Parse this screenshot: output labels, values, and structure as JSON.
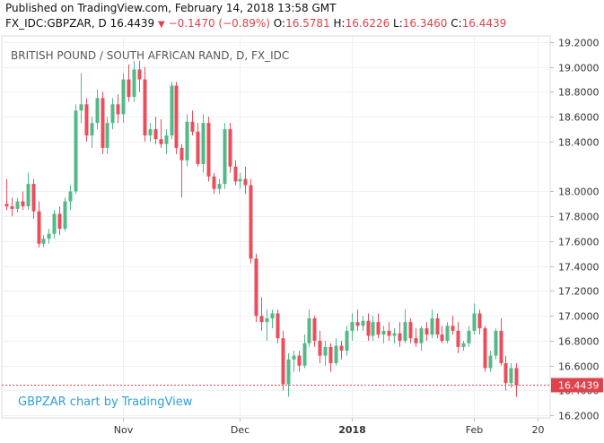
{
  "header": {
    "published_line": "Published on TradingView.com, February 14, 2018 13:58 GMT",
    "symbol": "FX_IDC:GBPZAR, D",
    "last": "16.4439",
    "arrow": "▼",
    "change": "−0.1470 (−0.89%)",
    "o_label": "O:",
    "o_value": "16.5781",
    "h_label": "H:",
    "h_value": "16.6226",
    "l_label": "L:",
    "l_value": "16.3460",
    "c_label": "C:",
    "c_value": "16.4439"
  },
  "colors": {
    "up": "#53b987",
    "down": "#eb4d5c",
    "price_line": "#e0424b",
    "watermark": "#2ea1d8"
  },
  "chart_data": {
    "type": "candlestick",
    "title": "BRITISH POUND / SOUTH AFRICAN RAND, D, FX_IDC",
    "watermark": "GBPZAR chart by TradingView",
    "current_price_label": "16.4439",
    "current_price": 16.4439,
    "ylim": [
      16.18,
      19.25
    ],
    "y_ticks": [
      "16.2000",
      "16.4000",
      "16.6000",
      "16.8000",
      "17.0000",
      "17.2000",
      "17.4000",
      "17.6000",
      "17.8000",
      "18.0000",
      "18.4000",
      "18.6000",
      "18.8000",
      "19.0000",
      "19.2000"
    ],
    "y_tick_values": [
      16.2,
      16.4,
      16.6,
      16.8,
      17.0,
      17.2,
      17.4,
      17.6,
      17.8,
      18.0,
      18.4,
      18.6,
      18.8,
      19.0,
      19.2
    ],
    "x_ticks": [
      {
        "label": "Nov",
        "index": 22
      },
      {
        "label": "Dec",
        "index": 44
      },
      {
        "label": "2018",
        "index": 65
      },
      {
        "label": "Feb",
        "index": 88
      },
      {
        "label": "20",
        "index": 100
      }
    ],
    "candles": [
      [
        17.9,
        18.1,
        17.85,
        17.88
      ],
      [
        17.88,
        17.95,
        17.8,
        17.86
      ],
      [
        17.86,
        17.95,
        17.83,
        17.92
      ],
      [
        17.92,
        18.0,
        17.85,
        17.88
      ],
      [
        17.88,
        18.15,
        17.85,
        18.06
      ],
      [
        18.06,
        18.1,
        17.78,
        17.84
      ],
      [
        17.84,
        17.92,
        17.55,
        17.58
      ],
      [
        17.58,
        17.65,
        17.55,
        17.62
      ],
      [
        17.62,
        17.7,
        17.58,
        17.66
      ],
      [
        17.66,
        17.85,
        17.62,
        17.82
      ],
      [
        17.82,
        17.88,
        17.65,
        17.7
      ],
      [
        17.7,
        17.95,
        17.68,
        17.92
      ],
      [
        17.92,
        18.05,
        17.85,
        18.0
      ],
      [
        18.0,
        18.7,
        17.98,
        18.65
      ],
      [
        18.65,
        18.95,
        18.55,
        18.7
      ],
      [
        18.7,
        18.75,
        18.4,
        18.45
      ],
      [
        18.45,
        18.6,
        18.35,
        18.55
      ],
      [
        18.55,
        18.82,
        18.5,
        18.75
      ],
      [
        18.75,
        18.8,
        18.3,
        18.35
      ],
      [
        18.35,
        18.6,
        18.3,
        18.55
      ],
      [
        18.55,
        18.75,
        18.5,
        18.7
      ],
      [
        18.7,
        18.78,
        18.55,
        18.62
      ],
      [
        18.62,
        18.95,
        18.55,
        18.9
      ],
      [
        18.9,
        19.02,
        18.72,
        18.76
      ],
      [
        18.76,
        19.05,
        18.72,
        18.98
      ],
      [
        18.98,
        19.05,
        18.8,
        18.9
      ],
      [
        18.9,
        19.0,
        18.4,
        18.45
      ],
      [
        18.45,
        18.55,
        18.4,
        18.5
      ],
      [
        18.5,
        18.6,
        18.38,
        18.42
      ],
      [
        18.42,
        18.58,
        18.35,
        18.38
      ],
      [
        18.38,
        18.5,
        18.3,
        18.45
      ],
      [
        18.45,
        18.88,
        18.42,
        18.85
      ],
      [
        18.85,
        18.88,
        18.3,
        18.35
      ],
      [
        18.35,
        18.38,
        17.95,
        18.25
      ],
      [
        18.25,
        18.62,
        18.2,
        18.56
      ],
      [
        18.56,
        18.65,
        18.45,
        18.48
      ],
      [
        18.48,
        18.55,
        18.2,
        18.22
      ],
      [
        18.22,
        18.62,
        18.15,
        18.55
      ],
      [
        18.55,
        18.6,
        18.08,
        18.12
      ],
      [
        18.12,
        18.15,
        17.98,
        18.02
      ],
      [
        18.02,
        18.1,
        17.98,
        18.06
      ],
      [
        18.06,
        18.55,
        18.02,
        18.5
      ],
      [
        18.5,
        18.55,
        18.15,
        18.2
      ],
      [
        18.2,
        18.25,
        18.05,
        18.08
      ],
      [
        18.08,
        18.15,
        18.02,
        18.1
      ],
      [
        18.1,
        18.2,
        17.98,
        18.05
      ],
      [
        18.05,
        18.1,
        17.42,
        17.46
      ],
      [
        17.46,
        17.5,
        16.95,
        17.0
      ],
      [
        17.0,
        17.15,
        16.88,
        16.95
      ],
      [
        16.95,
        17.05,
        16.8,
        16.98
      ],
      [
        16.98,
        17.05,
        16.9,
        17.02
      ],
      [
        17.02,
        17.05,
        16.78,
        16.82
      ],
      [
        16.82,
        16.88,
        16.4,
        16.45
      ],
      [
        16.45,
        16.7,
        16.35,
        16.65
      ],
      [
        16.65,
        16.72,
        16.55,
        16.68
      ],
      [
        16.68,
        16.72,
        16.55,
        16.6
      ],
      [
        16.6,
        16.85,
        16.58,
        16.78
      ],
      [
        16.78,
        17.05,
        16.75,
        16.98
      ],
      [
        16.98,
        17.0,
        16.75,
        16.8
      ],
      [
        16.8,
        16.88,
        16.62,
        16.68
      ],
      [
        16.68,
        16.8,
        16.6,
        16.75
      ],
      [
        16.75,
        16.78,
        16.55,
        16.62
      ],
      [
        16.62,
        16.82,
        16.6,
        16.76
      ],
      [
        16.76,
        16.8,
        16.65,
        16.72
      ],
      [
        16.72,
        16.92,
        16.68,
        16.88
      ],
      [
        16.88,
        17.02,
        16.8,
        16.95
      ],
      [
        16.95,
        17.05,
        16.88,
        16.92
      ],
      [
        16.92,
        17.0,
        16.88,
        16.96
      ],
      [
        16.96,
        17.02,
        16.8,
        16.84
      ],
      [
        16.84,
        17.0,
        16.8,
        16.95
      ],
      [
        16.95,
        17.02,
        16.82,
        16.85
      ],
      [
        16.85,
        16.92,
        16.78,
        16.88
      ],
      [
        16.88,
        16.95,
        16.8,
        16.84
      ],
      [
        16.84,
        16.9,
        16.78,
        16.86
      ],
      [
        16.86,
        16.95,
        16.75,
        16.8
      ],
      [
        16.8,
        17.05,
        16.78,
        16.95
      ],
      [
        16.95,
        16.98,
        16.78,
        16.82
      ],
      [
        16.82,
        16.9,
        16.75,
        16.78
      ],
      [
        16.78,
        16.92,
        16.72,
        16.9
      ],
      [
        16.9,
        16.95,
        16.8,
        16.85
      ],
      [
        16.85,
        17.05,
        16.82,
        16.98
      ],
      [
        16.98,
        17.02,
        16.82,
        16.85
      ],
      [
        16.85,
        16.92,
        16.78,
        16.8
      ],
      [
        16.8,
        16.95,
        16.78,
        16.92
      ],
      [
        16.92,
        17.0,
        16.85,
        16.88
      ],
      [
        16.88,
        16.95,
        16.7,
        16.75
      ],
      [
        16.75,
        16.8,
        16.72,
        16.78
      ],
      [
        16.78,
        16.92,
        16.75,
        16.88
      ],
      [
        16.88,
        17.1,
        16.85,
        17.02
      ],
      [
        17.02,
        17.05,
        16.85,
        16.9
      ],
      [
        16.9,
        16.92,
        16.55,
        16.58
      ],
      [
        16.58,
        16.72,
        16.55,
        16.68
      ],
      [
        16.68,
        16.9,
        16.65,
        16.88
      ],
      [
        16.88,
        16.98,
        16.6,
        16.62
      ],
      [
        16.62,
        16.68,
        16.4,
        16.46
      ],
      [
        16.46,
        16.62,
        16.42,
        16.58
      ],
      [
        16.58,
        16.62,
        16.35,
        16.44
      ]
    ]
  }
}
